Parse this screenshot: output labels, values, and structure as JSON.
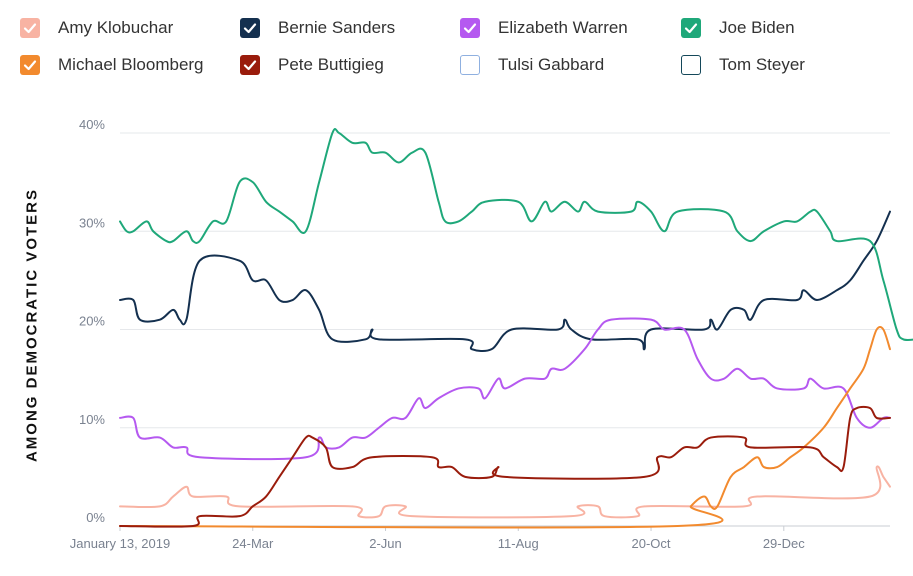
{
  "legend": [
    {
      "name": "Amy Klobuchar",
      "color": "#f8b3a3",
      "checked": true
    },
    {
      "name": "Bernie Sanders",
      "color": "#14304f",
      "checked": true
    },
    {
      "name": "Elizabeth Warren",
      "color": "#b559f0",
      "checked": true
    },
    {
      "name": "Joe Biden",
      "color": "#1fa87a",
      "checked": true
    },
    {
      "name": "Michael Bloomberg",
      "color": "#f28a2e",
      "checked": true
    },
    {
      "name": "Pete Buttigieg",
      "color": "#9a1c0c",
      "checked": true
    },
    {
      "name": "Tulsi Gabbard",
      "color": "#8fb0e0",
      "checked": false
    },
    {
      "name": "Tom Steyer",
      "color": "#14485a",
      "checked": false
    }
  ],
  "chart_data": {
    "type": "line",
    "ylabel": "AMONG DEMOCRATIC VOTERS",
    "ylim": [
      0,
      40
    ],
    "yticks": [
      0,
      10,
      20,
      30,
      40
    ],
    "ytick_labels": [
      "0%",
      "10%",
      "20%",
      "30%",
      "40%"
    ],
    "x_range": [
      0,
      116
    ],
    "xticks": [
      {
        "pos": 0,
        "label": "January 13, 2019"
      },
      {
        "pos": 20,
        "label": "24-Mar"
      },
      {
        "pos": 40,
        "label": "2-Jun"
      },
      {
        "pos": 60,
        "label": "11-Aug"
      },
      {
        "pos": 80,
        "label": "20-Oct"
      },
      {
        "pos": 100,
        "label": "29-Dec"
      }
    ],
    "series": [
      {
        "name": "Amy Klobuchar",
        "color": "#f8b3a3",
        "points": [
          [
            0,
            2
          ],
          [
            6,
            2
          ],
          [
            8,
            3
          ],
          [
            10,
            4
          ],
          [
            11,
            3
          ],
          [
            16,
            3
          ],
          [
            18,
            2
          ],
          [
            35,
            2
          ],
          [
            36,
            1
          ],
          [
            39,
            1
          ],
          [
            40,
            2
          ],
          [
            43,
            2
          ],
          [
            44,
            1
          ],
          [
            68,
            1
          ],
          [
            69,
            2
          ],
          [
            72,
            2
          ],
          [
            73,
            1
          ],
          [
            78,
            1
          ],
          [
            79,
            2
          ],
          [
            94,
            2
          ],
          [
            96,
            3
          ],
          [
            113,
            3
          ],
          [
            114,
            6
          ],
          [
            115,
            5
          ],
          [
            116,
            4
          ]
        ]
      },
      {
        "name": "Bernie Sanders",
        "color": "#14304f",
        "points": [
          [
            0,
            23
          ],
          [
            2,
            23
          ],
          [
            3,
            21
          ],
          [
            6,
            21
          ],
          [
            8,
            22
          ],
          [
            9,
            21
          ],
          [
            10,
            21
          ],
          [
            12,
            27
          ],
          [
            18,
            27
          ],
          [
            20,
            25
          ],
          [
            22,
            25
          ],
          [
            24,
            23
          ],
          [
            26,
            23
          ],
          [
            28,
            24
          ],
          [
            30,
            22
          ],
          [
            32,
            19
          ],
          [
            37,
            19
          ],
          [
            38,
            20
          ],
          [
            39,
            19
          ],
          [
            52,
            19
          ],
          [
            53,
            18
          ],
          [
            56,
            18
          ],
          [
            59,
            20
          ],
          [
            66,
            20
          ],
          [
            67,
            21
          ],
          [
            68,
            20
          ],
          [
            71,
            19
          ],
          [
            78,
            19
          ],
          [
            79,
            18
          ],
          [
            80,
            20
          ],
          [
            88,
            20
          ],
          [
            89,
            21
          ],
          [
            90,
            20
          ],
          [
            92,
            22
          ],
          [
            94,
            22
          ],
          [
            95,
            21
          ],
          [
            97,
            23
          ],
          [
            102,
            23
          ],
          [
            103,
            24
          ],
          [
            105,
            23
          ],
          [
            108,
            24
          ],
          [
            110,
            25
          ],
          [
            112,
            27
          ],
          [
            114,
            29
          ],
          [
            116,
            32
          ]
        ]
      },
      {
        "name": "Elizabeth Warren",
        "color": "#b559f0",
        "points": [
          [
            0,
            11
          ],
          [
            2,
            11
          ],
          [
            3,
            9
          ],
          [
            6,
            9
          ],
          [
            8,
            8
          ],
          [
            10,
            8
          ],
          [
            12,
            7
          ],
          [
            28,
            7
          ],
          [
            30,
            9
          ],
          [
            31,
            8
          ],
          [
            33,
            8
          ],
          [
            35,
            9
          ],
          [
            37,
            9
          ],
          [
            39,
            10
          ],
          [
            41,
            11
          ],
          [
            43,
            11
          ],
          [
            45,
            13
          ],
          [
            46,
            12
          ],
          [
            48,
            13
          ],
          [
            51,
            14
          ],
          [
            54,
            14
          ],
          [
            55,
            13
          ],
          [
            57,
            15
          ],
          [
            58,
            14
          ],
          [
            61,
            15
          ],
          [
            64,
            15
          ],
          [
            65,
            16
          ],
          [
            67,
            16
          ],
          [
            70,
            18
          ],
          [
            72,
            20
          ],
          [
            74,
            21
          ],
          [
            80,
            21
          ],
          [
            82,
            20
          ],
          [
            85,
            20
          ],
          [
            87,
            17
          ],
          [
            89,
            15
          ],
          [
            91,
            15
          ],
          [
            93,
            16
          ],
          [
            95,
            15
          ],
          [
            97,
            15
          ],
          [
            99,
            14
          ],
          [
            103,
            14
          ],
          [
            104,
            15
          ],
          [
            106,
            14
          ],
          [
            109,
            14
          ],
          [
            111,
            11
          ],
          [
            113,
            10
          ],
          [
            115,
            11
          ],
          [
            116,
            11
          ]
        ]
      },
      {
        "name": "Joe Biden",
        "color": "#1fa87a",
        "points": [
          [
            0,
            31
          ],
          [
            1,
            30
          ],
          [
            2,
            30
          ],
          [
            4,
            31
          ],
          [
            5,
            30
          ],
          [
            7,
            29
          ],
          [
            8,
            29
          ],
          [
            10,
            30
          ],
          [
            11,
            29
          ],
          [
            12,
            29
          ],
          [
            14,
            31
          ],
          [
            16,
            31
          ],
          [
            18,
            35
          ],
          [
            20,
            35
          ],
          [
            22,
            33
          ],
          [
            24,
            32
          ],
          [
            26,
            31
          ],
          [
            28,
            30
          ],
          [
            30,
            35
          ],
          [
            32,
            40
          ],
          [
            33,
            40
          ],
          [
            35,
            39
          ],
          [
            37,
            39
          ],
          [
            38,
            38
          ],
          [
            40,
            38
          ],
          [
            42,
            37
          ],
          [
            44,
            38
          ],
          [
            46,
            38
          ],
          [
            48,
            33
          ],
          [
            49,
            31
          ],
          [
            51,
            31
          ],
          [
            53,
            32
          ],
          [
            55,
            33
          ],
          [
            60,
            33
          ],
          [
            62,
            31
          ],
          [
            64,
            33
          ],
          [
            65,
            32
          ],
          [
            67,
            33
          ],
          [
            69,
            32
          ],
          [
            70,
            33
          ],
          [
            72,
            32
          ],
          [
            77,
            32
          ],
          [
            78,
            33
          ],
          [
            80,
            32
          ],
          [
            82,
            30
          ],
          [
            84,
            32
          ],
          [
            91,
            32
          ],
          [
            93,
            30
          ],
          [
            95,
            29
          ],
          [
            97,
            30
          ],
          [
            100,
            31
          ],
          [
            102,
            31
          ],
          [
            104,
            32
          ],
          [
            105,
            32
          ],
          [
            107,
            30
          ],
          [
            108,
            29
          ],
          [
            113,
            29
          ],
          [
            115,
            25
          ],
          [
            117,
            20
          ],
          [
            118,
            19
          ],
          [
            120,
            19
          ]
        ]
      },
      {
        "name": "Michael Bloomberg",
        "color": "#f28a2e",
        "points": [
          [
            0,
            0
          ],
          [
            84,
            0
          ],
          [
            86,
            2
          ],
          [
            88,
            3
          ],
          [
            89,
            2
          ],
          [
            90,
            2
          ],
          [
            92,
            5
          ],
          [
            94,
            6
          ],
          [
            96,
            7
          ],
          [
            97,
            6
          ],
          [
            99,
            6
          ],
          [
            101,
            7
          ],
          [
            103,
            8
          ],
          [
            106,
            10
          ],
          [
            108,
            12
          ],
          [
            110,
            14
          ],
          [
            112,
            16
          ],
          [
            113,
            18
          ],
          [
            114,
            20
          ],
          [
            115,
            20
          ],
          [
            116,
            18
          ]
        ]
      },
      {
        "name": "Pete Buttigieg",
        "color": "#9a1c0c",
        "points": [
          [
            0,
            0
          ],
          [
            11,
            0
          ],
          [
            12,
            1
          ],
          [
            18,
            1
          ],
          [
            20,
            2
          ],
          [
            22,
            3
          ],
          [
            24,
            5
          ],
          [
            26,
            7
          ],
          [
            28,
            9
          ],
          [
            29,
            9
          ],
          [
            31,
            8
          ],
          [
            32,
            6
          ],
          [
            35,
            6
          ],
          [
            38,
            7
          ],
          [
            47,
            7
          ],
          [
            48,
            6
          ],
          [
            50,
            6
          ],
          [
            52,
            5
          ],
          [
            56,
            5
          ],
          [
            57,
            6
          ],
          [
            58,
            5
          ],
          [
            79,
            5
          ],
          [
            81,
            7
          ],
          [
            83,
            7
          ],
          [
            85,
            8
          ],
          [
            87,
            8
          ],
          [
            89,
            9
          ],
          [
            94,
            9
          ],
          [
            95,
            8
          ],
          [
            104,
            8
          ],
          [
            106,
            7
          ],
          [
            108,
            6
          ],
          [
            109,
            6
          ],
          [
            110,
            11
          ],
          [
            111,
            12
          ],
          [
            113,
            12
          ],
          [
            114,
            11
          ],
          [
            116,
            11
          ]
        ]
      }
    ]
  }
}
